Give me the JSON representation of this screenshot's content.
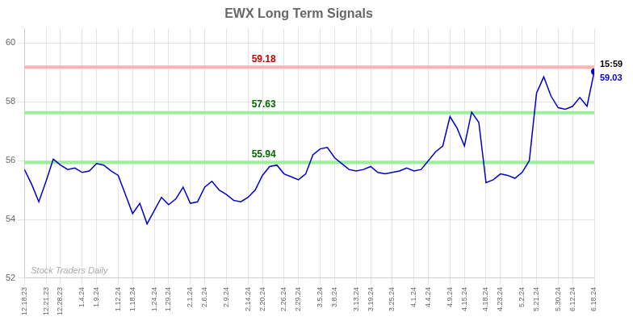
{
  "chart_data": {
    "type": "line",
    "title": "EWX Long Term Signals",
    "categories": [
      "12.18.23",
      null,
      null,
      "12.21.23",
      null,
      "12.28.23",
      null,
      null,
      "1.4.24",
      null,
      "1.9.24",
      null,
      null,
      "1.12.24",
      null,
      "1.18.24",
      null,
      null,
      "1.24.24",
      null,
      "1.29.24",
      null,
      null,
      "2.1.24",
      null,
      "2.6.24",
      null,
      null,
      "2.9.24",
      null,
      null,
      "2.14.24",
      null,
      "2.20.24",
      null,
      null,
      "2.26.24",
      null,
      "2.29.24",
      null,
      null,
      "3.5.24",
      null,
      "3.8.24",
      null,
      null,
      "3.13.24",
      null,
      "3.19.24",
      null,
      null,
      "3.25.24",
      null,
      null,
      "4.1.24",
      null,
      "4.4.24",
      null,
      null,
      "4.9.24",
      null,
      "4.15.24",
      null,
      null,
      "4.18.24",
      null,
      "4.23.24",
      null,
      null,
      "5.2.24",
      null,
      "5.21.24",
      null,
      null,
      "5.30.24",
      null,
      "6.12.24",
      null,
      null,
      "6.18.24"
    ],
    "values": [
      55.7,
      55.2,
      54.6,
      55.3,
      56.05,
      55.85,
      55.7,
      55.75,
      55.6,
      55.65,
      55.9,
      55.85,
      55.65,
      55.5,
      54.85,
      54.2,
      54.55,
      53.85,
      54.3,
      54.75,
      54.5,
      54.7,
      55.1,
      54.55,
      54.6,
      55.1,
      55.3,
      55.0,
      54.85,
      54.65,
      54.6,
      54.75,
      55.0,
      55.5,
      55.8,
      55.85,
      55.55,
      55.45,
      55.35,
      55.55,
      56.2,
      56.4,
      56.45,
      56.1,
      55.9,
      55.7,
      55.65,
      55.7,
      55.8,
      55.6,
      55.55,
      55.6,
      55.65,
      55.75,
      55.65,
      55.7,
      56.0,
      56.3,
      56.5,
      57.5,
      57.1,
      56.5,
      57.65,
      57.3,
      55.25,
      55.35,
      55.55,
      55.5,
      55.4,
      55.6,
      56.0,
      58.3,
      58.85,
      58.2,
      57.8,
      57.75,
      57.85,
      58.15,
      57.85,
      59.03
    ],
    "color": "#0000cc",
    "hlines": [
      {
        "y": 59.18,
        "label": "59.18",
        "color": "#ffaaaa",
        "label_color": "#cc0000"
      },
      {
        "y": 57.63,
        "label": "57.63",
        "color": "#90ee90",
        "label_color": "#006600"
      },
      {
        "y": 55.94,
        "label": "55.94",
        "color": "#90ee90",
        "label_color": "#006600"
      }
    ],
    "last_time": "15:59",
    "last_value_label": "59.03",
    "watermark": "Stock Traders Daily",
    "ylim": [
      52,
      60.5
    ],
    "yticks": [
      52,
      54,
      56,
      58,
      60
    ],
    "grid": true
  }
}
